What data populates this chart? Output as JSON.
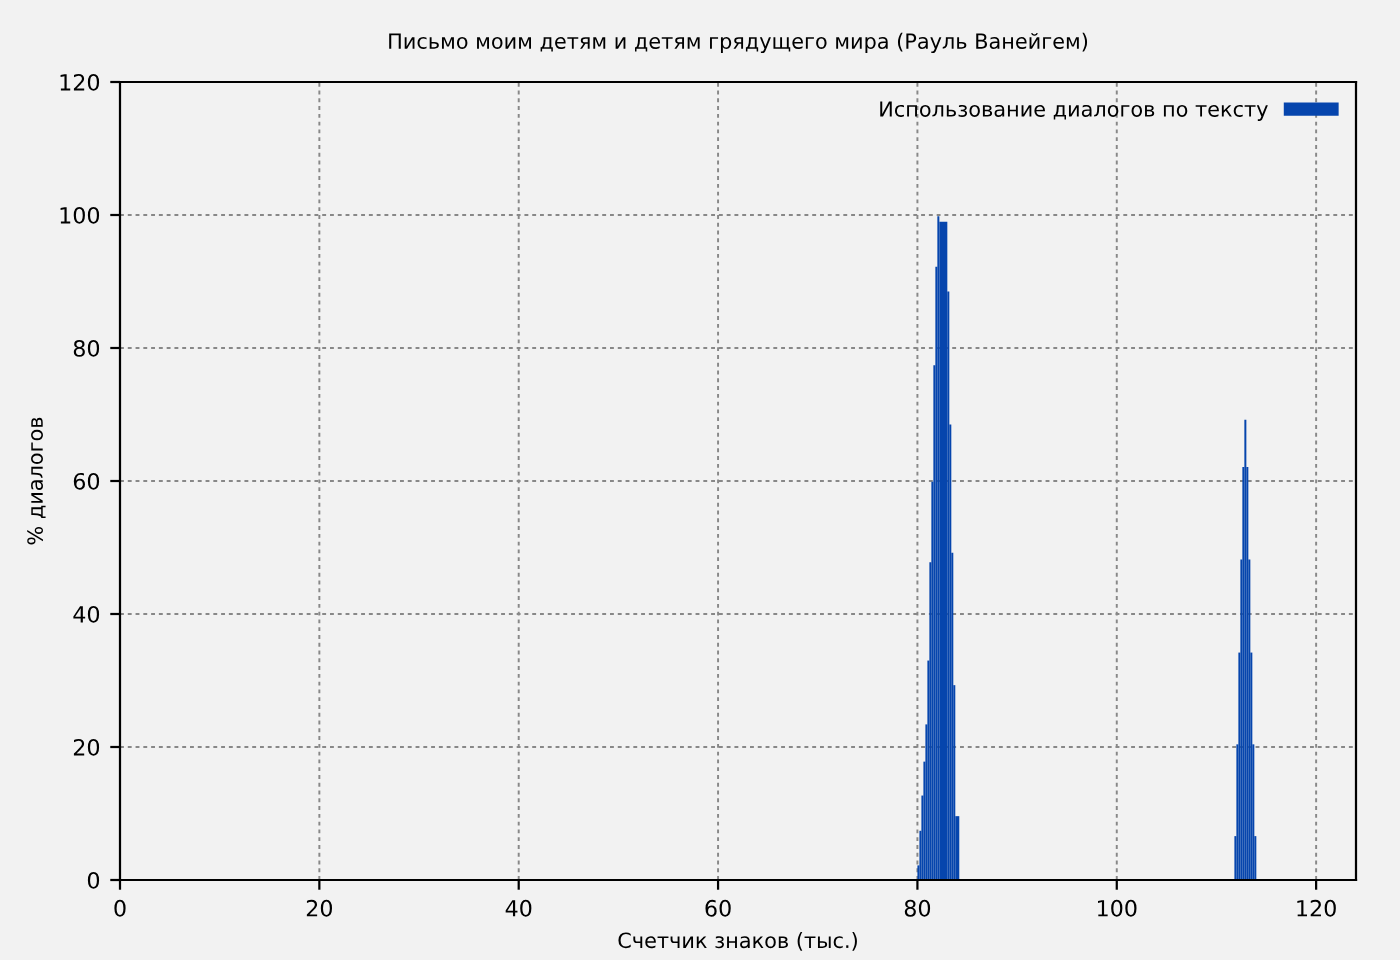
{
  "chart_data": {
    "type": "histogram",
    "title": "Письмо моим детям и детям грядущего мира (Рауль Ванейгем)",
    "xlabel": "Счетчик знаков (тыс.)",
    "ylabel": "% диалогов",
    "bins": [
      80.0,
      80.2,
      80.4,
      80.6,
      80.8,
      81.0,
      81.2,
      81.4,
      81.6,
      81.8,
      82.0,
      82.2,
      83.0,
      83.2,
      83.4,
      83.6,
      83.8,
      84.2,
      111.8,
      112.0,
      112.2,
      112.4,
      112.6,
      112.8,
      113.0,
      113.2,
      113.4,
      113.6,
      113.8,
      114.0
    ],
    "series": [
      {
        "name": "Использование диалогов по тексту",
        "color": "#0645ad",
        "values": [
          2.2,
          7.4,
          12.7,
          17.8,
          23.4,
          33,
          47.8,
          59.9,
          77.4,
          92.2,
          99.8,
          99,
          88.5,
          68.5,
          49.2,
          29.3,
          9.6,
          null,
          6.6,
          20.4,
          34.2,
          48.2,
          62.1,
          69.2,
          62.1,
          48.2,
          34.2,
          20.4,
          6.6
        ]
      }
    ],
    "xlim": [
      0,
      124
    ],
    "ylim": [
      0,
      120
    ],
    "xticks": [
      0,
      20,
      40,
      60,
      80,
      100,
      120
    ],
    "yticks": [
      0,
      20,
      40,
      60,
      80,
      100,
      120
    ],
    "grid": true,
    "legend": "top right"
  }
}
